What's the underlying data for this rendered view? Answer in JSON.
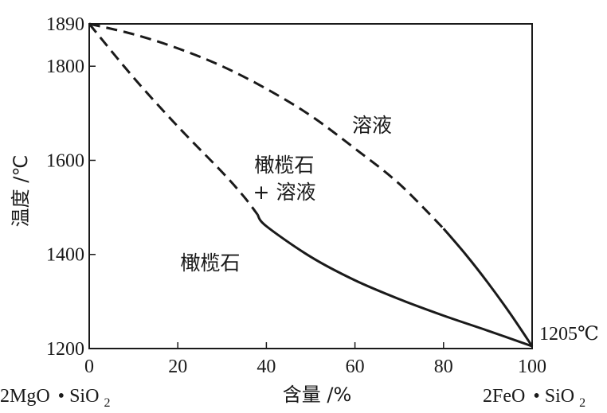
{
  "chart_data": {
    "type": "line",
    "title": "",
    "xlabel": "含量 /%",
    "ylabel": "温度 /℃",
    "xlim": [
      0,
      100
    ],
    "ylim": [
      1200,
      1890
    ],
    "x_ticks": [
      "0",
      "20",
      "40",
      "60",
      "80",
      "100"
    ],
    "y_ticks": [
      "1200",
      "1400",
      "1600",
      "1800",
      "1890"
    ],
    "grid": false,
    "series": [
      {
        "role": "liquidus",
        "points": [
          [
            0,
            1890
          ],
          [
            10,
            1868
          ],
          [
            20,
            1838
          ],
          [
            30,
            1800
          ],
          [
            40,
            1752
          ],
          [
            50,
            1695
          ],
          [
            60,
            1625
          ],
          [
            70,
            1550
          ],
          [
            80,
            1455
          ],
          [
            85,
            1400
          ],
          [
            90,
            1340
          ],
          [
            95,
            1275
          ],
          [
            100,
            1205
          ]
        ],
        "dashed_until_x": 80
      },
      {
        "role": "solidus",
        "points": [
          [
            0,
            1890
          ],
          [
            10,
            1776
          ],
          [
            20,
            1672
          ],
          [
            30,
            1575
          ],
          [
            35,
            1522
          ],
          [
            40,
            1460
          ],
          [
            50,
            1395
          ],
          [
            60,
            1345
          ],
          [
            70,
            1305
          ],
          [
            80,
            1270
          ],
          [
            90,
            1238
          ],
          [
            100,
            1205
          ]
        ],
        "dashed_until_x": 38
      }
    ],
    "annotations": {
      "liquid_region": "溶液",
      "two_phase_line1": "橄榄石",
      "two_phase_line2": "+ 溶液",
      "solid_region": "橄榄石",
      "melting_point": "1205℃"
    },
    "endpoints": {
      "left_main": "2MgO",
      "left_dot": "•",
      "left_sio": "SiO",
      "left_sub": "2",
      "right_main": "2FeO",
      "right_dot": "•",
      "right_sio": "SiO",
      "right_sub": "2"
    }
  }
}
